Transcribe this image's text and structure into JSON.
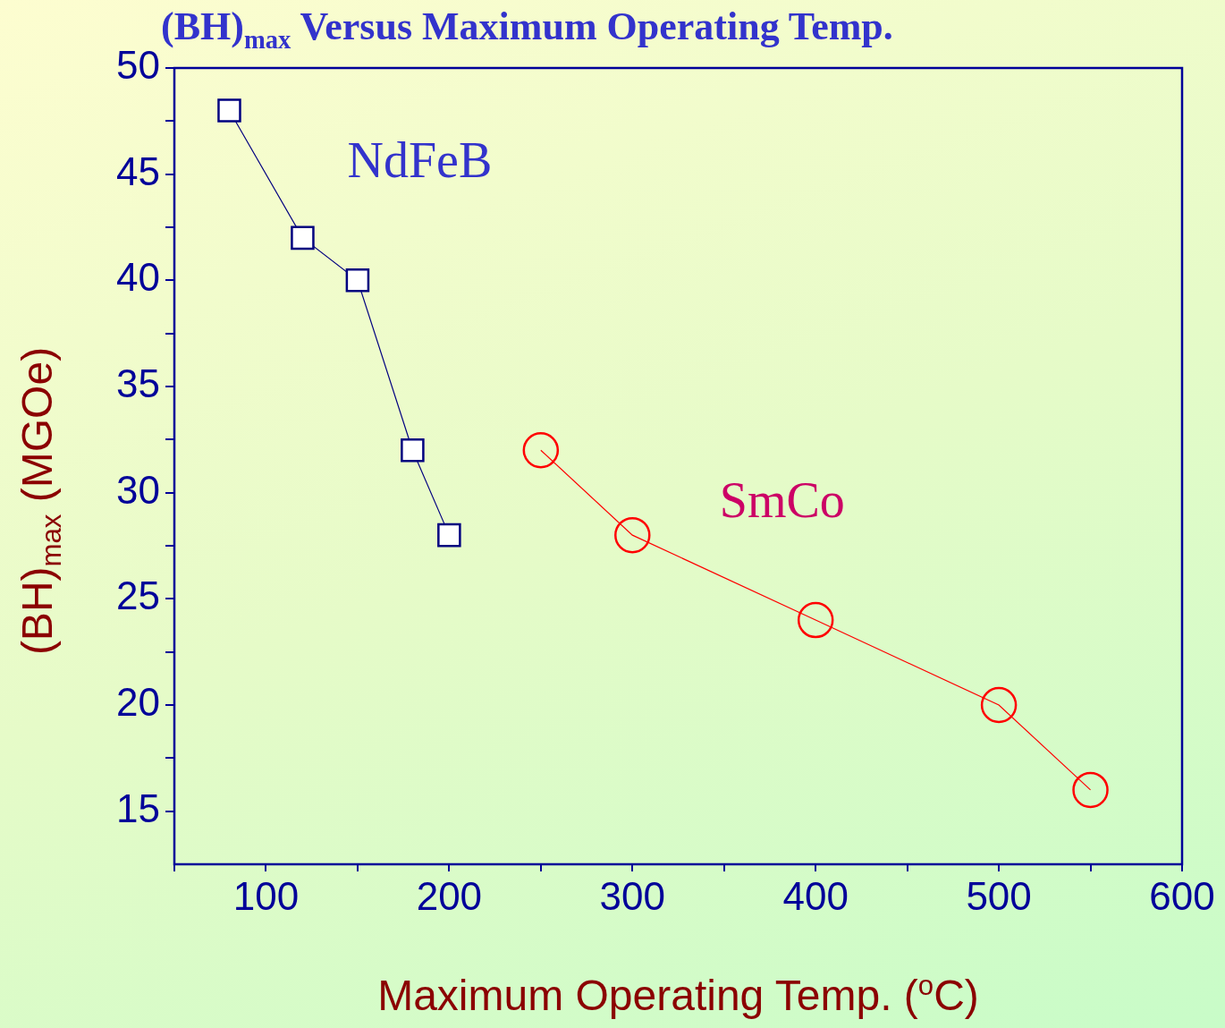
{
  "chart_data": {
    "type": "line",
    "title": "(BH)$_{max}$ Versus Maximum Operating Temp.",
    "xlabel": "Maximum Operating Temp. ($^{o}$C)",
    "ylabel": "(BH)$_{max}$ (MGOe)",
    "xlim": [
      50,
      600
    ],
    "xticks": [
      {
        "value": 50,
        "label": null
      },
      100,
      {
        "value": 150,
        "label": null
      },
      200,
      {
        "value": 250,
        "label": null
      },
      300,
      {
        "value": 350,
        "label": null
      },
      400,
      {
        "value": 450,
        "label": null
      },
      500,
      {
        "value": 550,
        "label": null
      },
      600
    ],
    "ylim": [
      12.5,
      50
    ],
    "yticks": [
      15,
      {
        "value": 17.5,
        "label": null
      },
      20,
      {
        "value": 22.5,
        "label": null
      },
      25,
      {
        "value": 27.5,
        "label": null
      },
      30,
      {
        "value": 32.5,
        "label": null
      },
      35,
      {
        "value": 37.5,
        "label": null
      },
      40,
      {
        "value": 42.5,
        "label": null
      },
      45,
      {
        "value": 47.5,
        "label": null
      },
      50
    ],
    "grid": false,
    "legend": false,
    "line_style": "solid",
    "series": [
      {
        "name": "NdFeB",
        "color": "#000080",
        "marker": "square",
        "x": [
          80,
          120,
          150,
          180,
          200
        ],
        "values": [
          48,
          42,
          40,
          32,
          28
        ]
      },
      {
        "name": "SmCo",
        "color": "#ff0000",
        "marker": "circle",
        "x": [
          250,
          300,
          400,
          500,
          550
        ],
        "values": [
          32,
          28,
          24,
          20,
          16
        ]
      }
    ]
  }
}
